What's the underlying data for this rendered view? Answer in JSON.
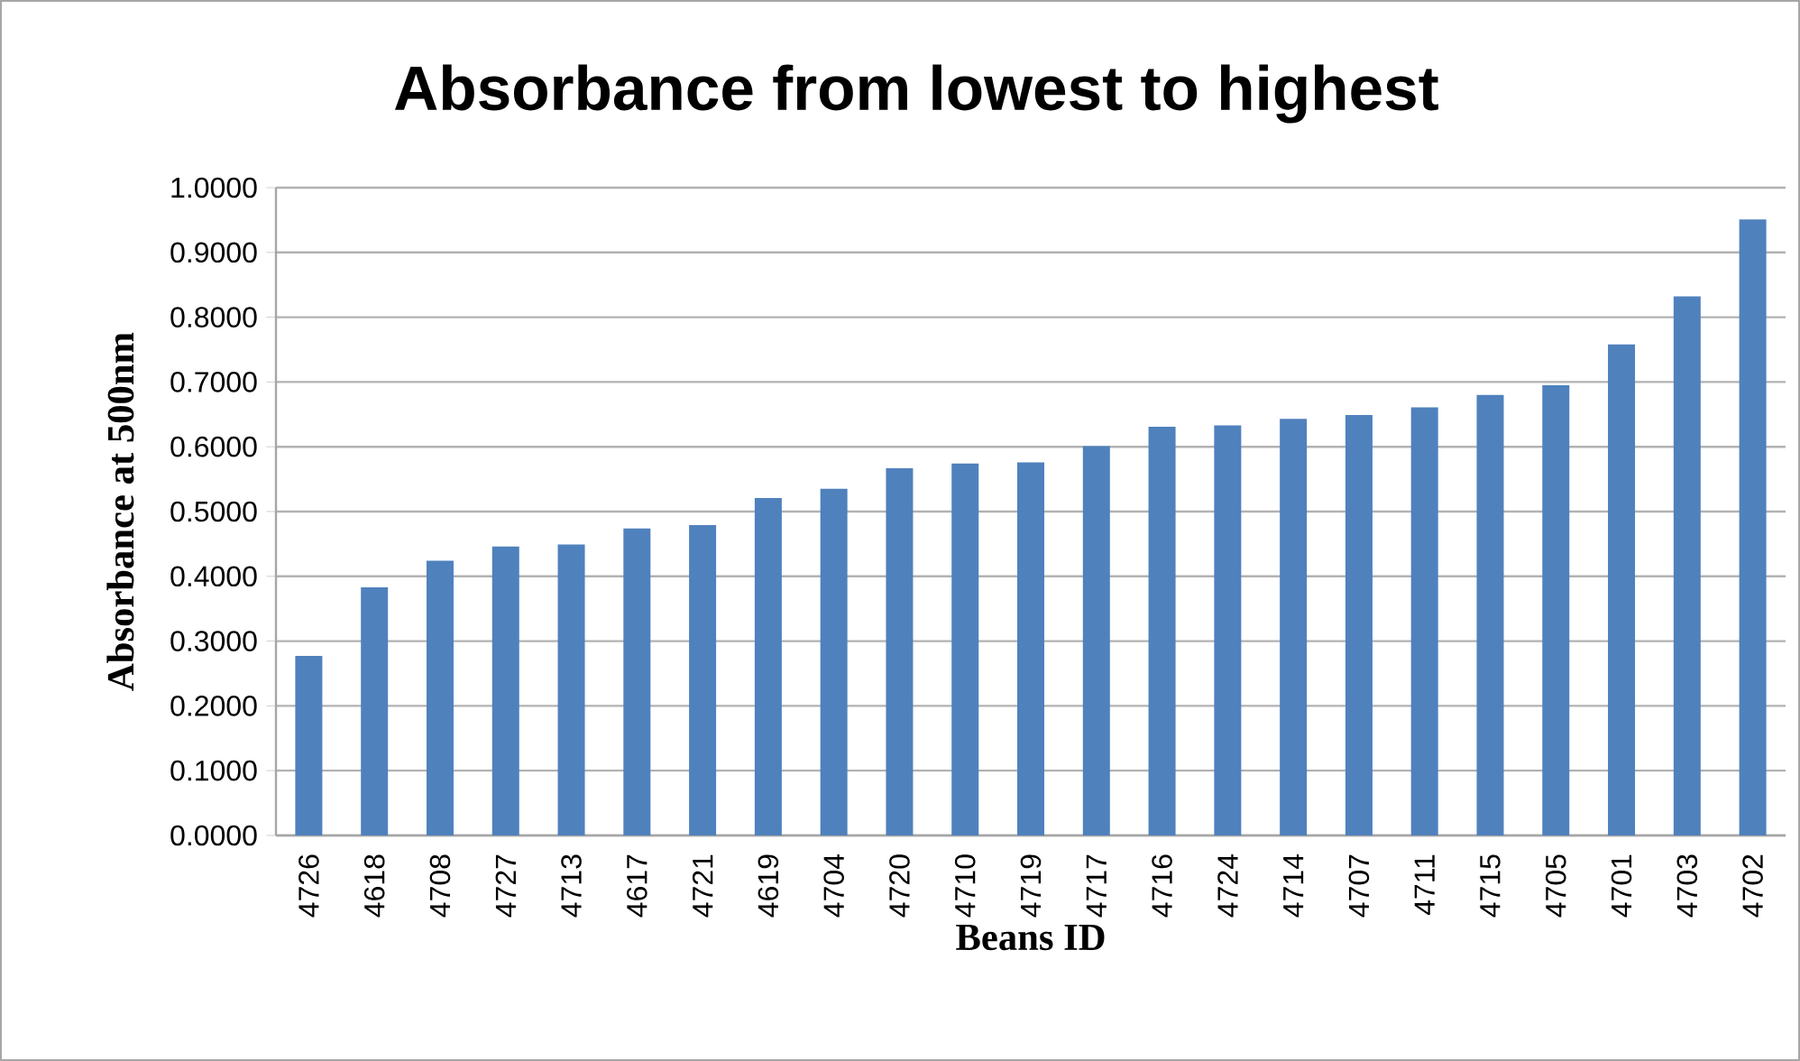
{
  "chart_data": {
    "type": "bar",
    "title": "Absorbance from lowest to highest",
    "xlabel": "Beans ID",
    "ylabel": "Absorbance at 500nm",
    "categories": [
      "4726",
      "4618",
      "4708",
      "4727",
      "4713",
      "4617",
      "4721",
      "4619",
      "4704",
      "4720",
      "4710",
      "4719",
      "4717",
      "4716",
      "4724",
      "4714",
      "4707",
      "4711",
      "4715",
      "4705",
      "4701",
      "4703",
      "4702"
    ],
    "values": [
      0.277,
      0.383,
      0.424,
      0.446,
      0.449,
      0.474,
      0.479,
      0.521,
      0.535,
      0.567,
      0.574,
      0.576,
      0.601,
      0.631,
      0.633,
      0.643,
      0.649,
      0.661,
      0.68,
      0.695,
      0.758,
      0.832,
      0.951
    ],
    "color": "#4f81bd",
    "ylim": [
      0,
      1
    ],
    "yticks": [
      {
        "value": 0,
        "label": "0.0000"
      },
      {
        "value": 0.1,
        "label": "0.1000"
      },
      {
        "value": 0.2,
        "label": "0.2000"
      },
      {
        "value": 0.3,
        "label": "0.3000"
      },
      {
        "value": 0.4,
        "label": "0.4000"
      },
      {
        "value": 0.5,
        "label": "0.5000"
      },
      {
        "value": 0.6,
        "label": "0.6000"
      },
      {
        "value": 0.7,
        "label": "0.7000"
      },
      {
        "value": 0.8,
        "label": "0.8000"
      },
      {
        "value": 0.9,
        "label": "0.9000"
      },
      {
        "value": 1,
        "label": "1.0000"
      }
    ],
    "grid": "y"
  }
}
